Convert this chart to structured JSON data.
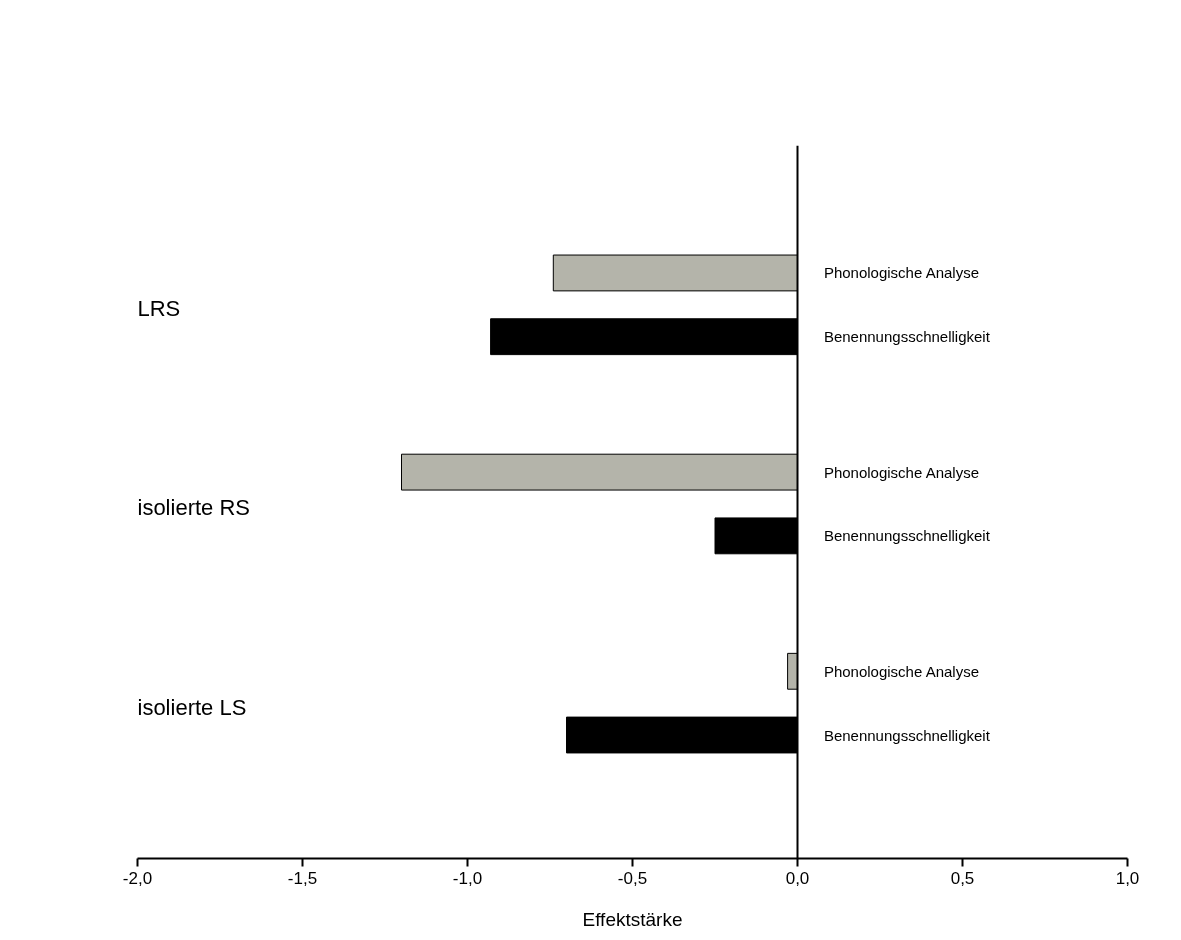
{
  "chart_data": {
    "type": "bar",
    "orientation": "horizontal",
    "xlabel": "Effektstärke",
    "categories": [
      "LRS",
      "isolierte RS",
      "isolierte LS"
    ],
    "series": [
      {
        "name": "Phonologische Analyse",
        "color": "#b4b4aa",
        "values": [
          -0.74,
          -1.2,
          -0.03
        ]
      },
      {
        "name": "Benennungsschnelligkeit",
        "color": "#000000",
        "values": [
          -0.93,
          -0.25,
          -0.7
        ]
      }
    ],
    "xlim": [
      -2.0,
      1.0
    ],
    "xticks": [
      {
        "value": -2.0,
        "label": "-2,0"
      },
      {
        "value": -1.5,
        "label": "-1,5"
      },
      {
        "value": -1.0,
        "label": "-1,0"
      },
      {
        "value": -0.5,
        "label": "-0,5"
      },
      {
        "value": 0.0,
        "label": "0,0"
      },
      {
        "value": 0.5,
        "label": "0,5"
      },
      {
        "value": 1.0,
        "label": "1,0"
      }
    ]
  }
}
